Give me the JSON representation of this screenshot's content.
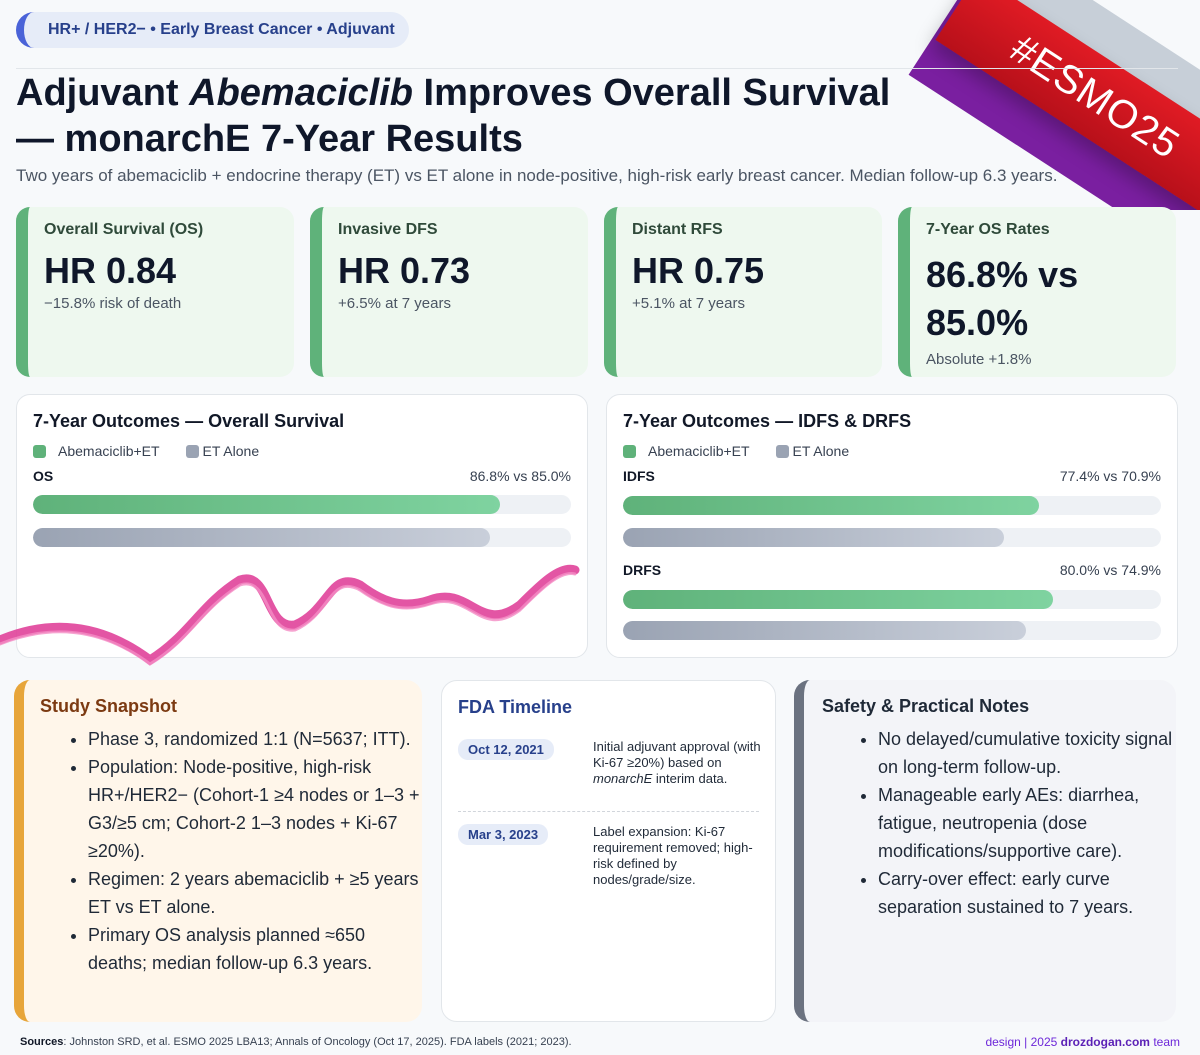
{
  "tag": "HR+ / HER2− • Early Breast Cancer • Adjuvant",
  "title": {
    "part1": "Adjuvant ",
    "drug": "Abemaciclib",
    "part2": " Improves Overall Survival",
    "line2": "— monarchE 7-Year Results"
  },
  "subtitle": "Two years of abemaciclib + endocrine therapy (ET) vs ET alone in node-positive, high-risk early breast cancer. Median follow-up 6.3 years.",
  "banner": "#ESMO25",
  "stats": [
    {
      "label": "Overall Survival (OS)",
      "value": "HR 0.84",
      "note": "−15.8% risk of death"
    },
    {
      "label": "Invasive DFS",
      "value": "HR 0.73",
      "note": "+6.5% at 7 years"
    },
    {
      "label": "Distant RFS",
      "value": "HR 0.75",
      "note": "+5.1% at 7 years"
    },
    {
      "label": "7-Year OS Rates",
      "value_a": "86.8% vs",
      "value_b": "85.0%",
      "note": "Absolute +1.8%"
    }
  ],
  "legend": {
    "a": "Abemaciclib+ET",
    "b": "ET Alone"
  },
  "panel_os": {
    "title": "7-Year Outcomes — Overall Survival",
    "rows": [
      {
        "label": "OS",
        "text": "86.8% vs 85.0%",
        "a": 86.8,
        "b": 85.0
      }
    ]
  },
  "panel_idfs": {
    "title": "7-Year Outcomes — IDFS & DRFS",
    "rows": [
      {
        "label": "IDFS",
        "text": "77.4% vs 70.9%",
        "a": 77.4,
        "b": 70.9
      },
      {
        "label": "DRFS",
        "text": "80.0% vs 74.9%",
        "a": 80.0,
        "b": 74.9
      }
    ]
  },
  "snapshot": {
    "title": "Study Snapshot",
    "items": [
      "Phase 3, randomized 1:1 (N=5637; ITT).",
      "Population: Node-positive, high-risk HR+/HER2− (Cohort-1 ≥4 nodes or 1–3 + G3/≥5 cm; Cohort-2 1–3 nodes + Ki-67 ≥20%).",
      "Regimen: 2 years abemaciclib + ≥5 years ET vs ET alone.",
      "Primary OS analysis planned ≈650 deaths; median follow-up 6.3 years."
    ]
  },
  "fda": {
    "title": "FDA Timeline",
    "events": [
      {
        "date": "Oct 12, 2021",
        "pre": "Initial adjuvant approval (with Ki-67 ≥20%) based on ",
        "em": "monarchE",
        "post": " interim data."
      },
      {
        "date": "Mar 3, 2023",
        "pre": "Label expansion: Ki-67 requirement removed; high-risk defined by nodes/grade/size.",
        "em": "",
        "post": ""
      }
    ]
  },
  "safety": {
    "title": "Safety & Practical Notes",
    "items": [
      "No delayed/cumulative toxicity signal on long-term follow-up.",
      "Manageable early AEs: diarrhea, fatigue, neutropenia (dose modifications/supportive care).",
      "Carry-over effect: early curve separation sustained to 7 years."
    ]
  },
  "footer": {
    "sources_label": "Sources",
    "sources_text": ": Johnston SRD, et al. ESMO 2025 LBA13; Annals of Oncology (Oct 17, 2025). FDA labels (2021; 2023).",
    "credit_pre": "design | 2025 ",
    "credit_site": "drozdogan.com",
    "credit_post": " team"
  },
  "colors": {
    "accent": "#5fb27a",
    "comparator": "#9aa3b3",
    "banner": "#e01b24",
    "ribbon": "#e0439a"
  }
}
